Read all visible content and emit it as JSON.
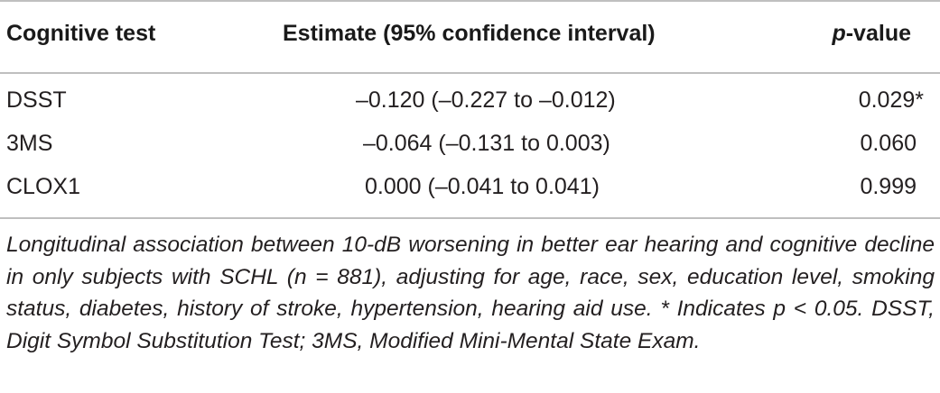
{
  "table": {
    "headers": {
      "test": "Cognitive test",
      "estimate": "Estimate (95% confidence interval)",
      "pvalue_italic": "p",
      "pvalue_rest": "-value"
    },
    "rows": [
      {
        "test": "DSST",
        "estimate": "–0.120 (–0.227 to –0.012)",
        "pvalue": "0.029*"
      },
      {
        "test": "3MS",
        "estimate": "–0.064 (–0.131 to 0.003)",
        "pvalue": "0.060"
      },
      {
        "test": "CLOX1",
        "estimate": "0.000 (–0.041 to 0.041)",
        "pvalue": "0.999"
      }
    ]
  },
  "caption": "Longitudinal association between 10-dB worsening in better ear hearing and cognitive decline in only subjects with SCHL (n = 881), adjusting for age, race, sex, education level, smoking status, diabetes, history of stroke, hypertension, hearing aid use. * Indicates p < 0.05. DSST, Digit Symbol Substitution Test; 3MS, Modified Mini-Mental State Exam."
}
